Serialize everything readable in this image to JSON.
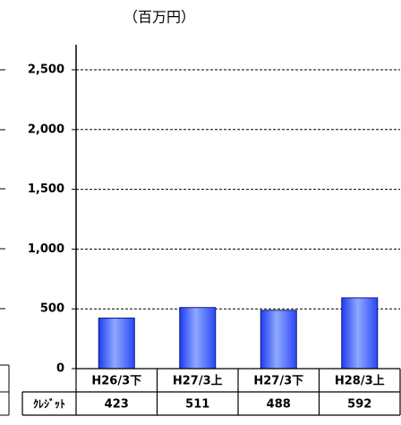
{
  "chart_data": {
    "type": "bar",
    "title": "（百万円）",
    "categories": [
      "H26/3下",
      "H27/3上",
      "H27/3下",
      "H28/3上"
    ],
    "series": [
      {
        "name": "ｸﾚｼﾞｯﾄ",
        "color": "#3a5cff",
        "values": [
          423,
          511,
          488,
          592
        ]
      }
    ],
    "ylim": [
      0,
      2500
    ],
    "yticks": [
      0,
      500,
      {
        "value": 1000,
        "label": "1,000"
      },
      {
        "value": 1500,
        "label": "1,500"
      },
      {
        "value": 2000,
        "label": "2,000"
      },
      {
        "value": 2500,
        "label": "2,500"
      }
    ],
    "grid": true
  }
}
